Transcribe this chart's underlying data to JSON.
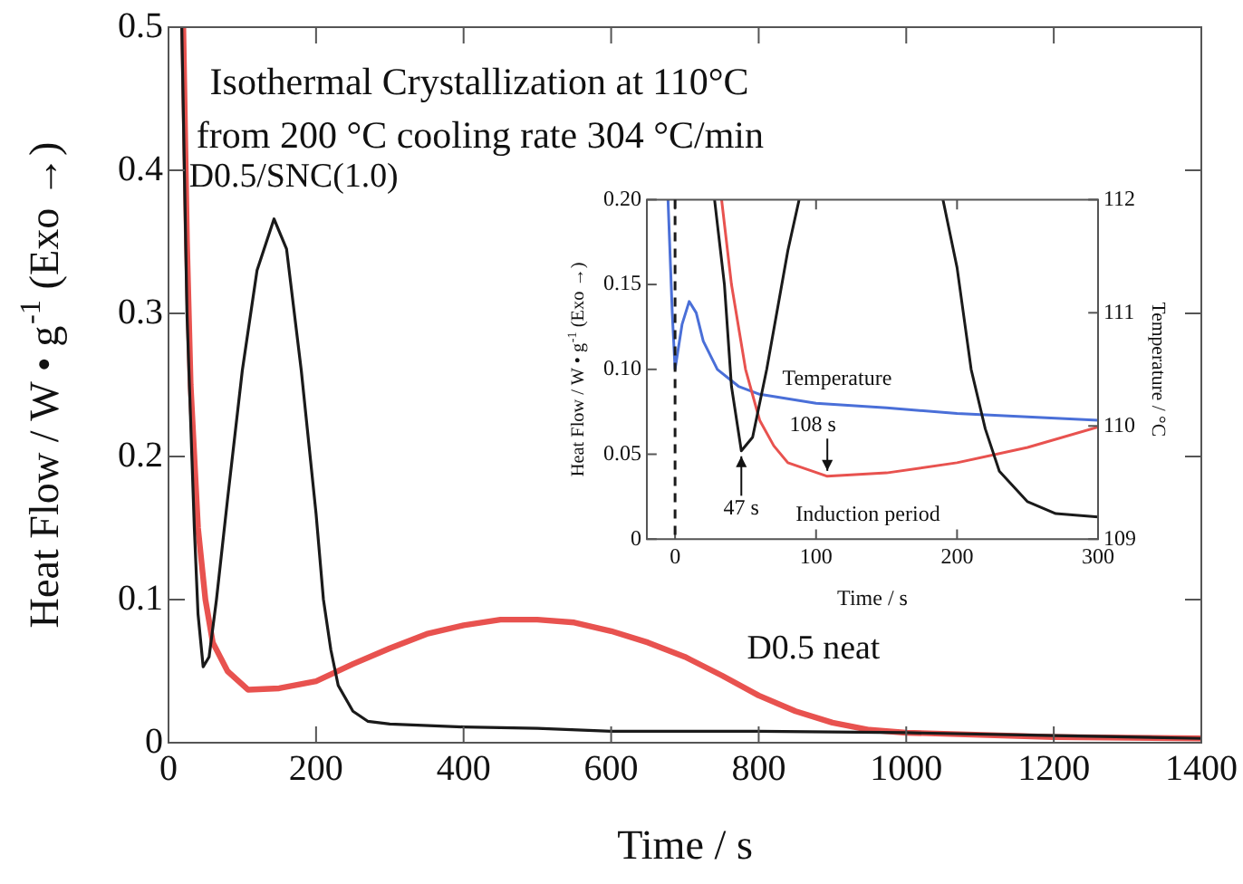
{
  "chart_data": [
    {
      "type": "line",
      "xlabel": "Time / s",
      "ylabel": "Heat Flow / W • g$^{-1}$ (Exo →)",
      "xlim": [
        0,
        1400
      ],
      "xticks": [
        0,
        200,
        400,
        600,
        800,
        1000,
        1200,
        1400
      ],
      "ylim": [
        0,
        0.5
      ],
      "yticks": [
        0,
        0.1,
        0.2,
        0.3,
        0.4,
        0.5
      ],
      "grid": false,
      "legend": false,
      "annotations": [
        "Isothermal Crystallization at 110°C",
        "from 200 °C cooling rate 304 °C/min"
      ],
      "series": [
        {
          "name": "D0.5/SNC(1.0)",
          "color": "#1a1a1a",
          "x": [
            18,
            25,
            35,
            40,
            47,
            55,
            65,
            80,
            100,
            120,
            143,
            160,
            180,
            200,
            210,
            220,
            230,
            250,
            270,
            300,
            400,
            500,
            600,
            800,
            1000,
            1200,
            1400
          ],
          "values": [
            0.5,
            0.3,
            0.15,
            0.09,
            0.053,
            0.06,
            0.1,
            0.17,
            0.26,
            0.33,
            0.366,
            0.345,
            0.26,
            0.16,
            0.1,
            0.065,
            0.04,
            0.022,
            0.015,
            0.013,
            0.011,
            0.01,
            0.008,
            0.008,
            0.007,
            0.005,
            0.003
          ]
        },
        {
          "name": "D0.5 neat",
          "color": "#e8524f",
          "x": [
            20,
            25,
            30,
            40,
            50,
            60,
            80,
            108,
            150,
            200,
            250,
            300,
            350,
            400,
            450,
            500,
            550,
            600,
            650,
            700,
            750,
            800,
            850,
            900,
            950,
            1000,
            1200,
            1400
          ],
          "values": [
            0.5,
            0.35,
            0.25,
            0.15,
            0.1,
            0.07,
            0.05,
            0.037,
            0.038,
            0.043,
            0.055,
            0.066,
            0.076,
            0.082,
            0.086,
            0.086,
            0.084,
            0.078,
            0.07,
            0.06,
            0.047,
            0.033,
            0.022,
            0.014,
            0.009,
            0.007,
            0.004,
            0.003
          ]
        }
      ]
    },
    {
      "type": "line",
      "xlabel": "Time / s",
      "ylabel": "Heat Flow / W • g$^{-1}$ (Exo →)",
      "y2label": "Temperature / °C",
      "xlim": [
        -20,
        300
      ],
      "xticks": [
        0,
        100,
        200,
        300
      ],
      "ylim": [
        0,
        0.2
      ],
      "yticks": [
        0,
        {
          "value": 0.05,
          "label": "0.05"
        },
        {
          "value": 0.1,
          "label": "0.10"
        },
        {
          "value": 0.15,
          "label": "0.15"
        },
        {
          "value": 0.2,
          "label": "0.20"
        }
      ],
      "y2lim": [
        109,
        112
      ],
      "y2ticks": [
        109,
        110,
        111,
        112
      ],
      "grid": false,
      "legend": false,
      "ref_lines": [
        {
          "axis": "x",
          "value": 0,
          "color": "#1a1a1a",
          "line_style": "dashed"
        }
      ],
      "annotations": [
        {
          "text": "47 s",
          "x": 47,
          "y": 0.052
        },
        {
          "text": "108 s",
          "x": 108,
          "y": 0.037
        },
        "Induction period"
      ],
      "series": [
        {
          "color": "#1a1a1a",
          "x": [
            28,
            35,
            40,
            47,
            55,
            65,
            80,
            88,
            140,
            190,
            200,
            210,
            220,
            230,
            250,
            270,
            300
          ],
          "values": [
            0.2,
            0.15,
            0.09,
            0.052,
            0.06,
            0.1,
            0.17,
            0.2,
            null,
            0.2,
            0.16,
            0.1,
            0.065,
            0.04,
            0.022,
            0.015,
            0.013
          ]
        },
        {
          "color": "#e8524f",
          "x": [
            33,
            40,
            50,
            60,
            70,
            80,
            108,
            150,
            200,
            250,
            300
          ],
          "values": [
            0.2,
            0.15,
            0.1,
            0.07,
            0.055,
            0.045,
            0.037,
            0.039,
            0.045,
            0.054,
            0.066
          ]
        },
        {
          "name": "Temperature",
          "color": "#4a6fd8",
          "axis": "y2",
          "x": [
            -5,
            -2,
            0,
            5,
            10,
            15,
            20,
            30,
            45,
            60,
            100,
            150,
            200,
            250,
            300
          ],
          "values": [
            112,
            111,
            110.5,
            110.9,
            111.1,
            111,
            110.75,
            110.5,
            110.35,
            110.28,
            110.2,
            110.16,
            110.11,
            110.08,
            110.05
          ]
        }
      ]
    }
  ]
}
